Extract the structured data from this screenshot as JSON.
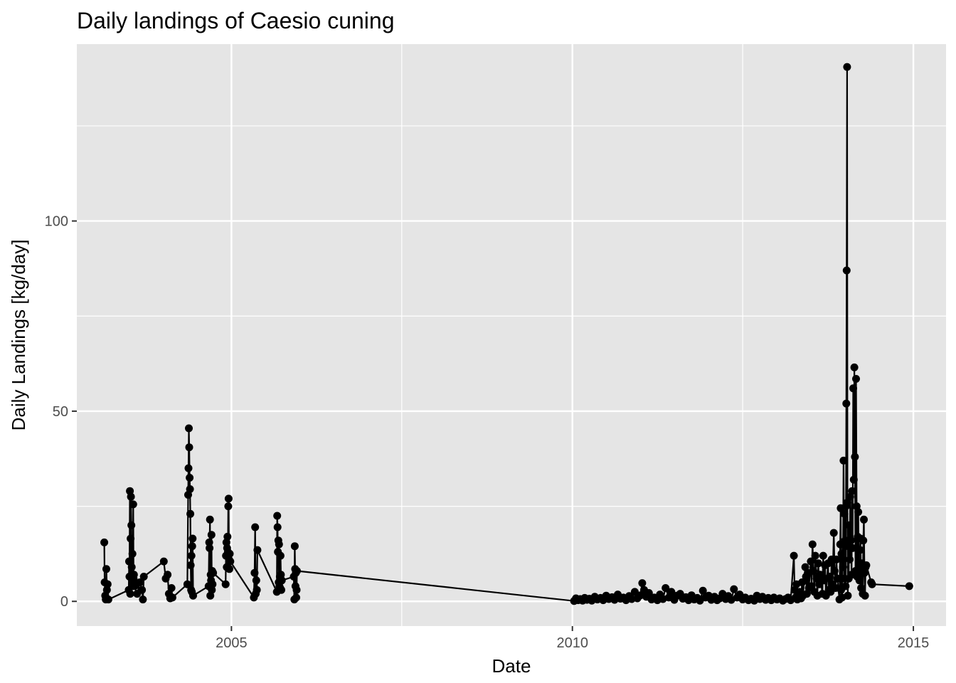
{
  "chart_data": {
    "type": "line",
    "title": "Daily landings of Caesio cuning",
    "xlabel": "Date",
    "ylabel": "Daily Landings [kg/day]",
    "x_axis_type": "date",
    "xlim": [
      "2002-09-26",
      "2015-06-25"
    ],
    "ylim": [
      -6.5,
      146.5
    ],
    "x_ticks": [
      {
        "date": "2005-01-01",
        "label": "2005"
      },
      {
        "date": "2010-01-01",
        "label": "2010"
      },
      {
        "date": "2015-01-01",
        "label": "2015"
      }
    ],
    "x_minor_ticks": [
      "2007-07-02",
      "2012-07-01"
    ],
    "y_ticks": [
      0,
      50,
      100
    ],
    "y_minor_ticks": [
      25,
      75,
      125
    ],
    "grid": true,
    "background": "#e5e5e5",
    "grid_color": "#ffffff",
    "series_color": "#000000",
    "marker": "circle",
    "series": [
      {
        "points": [
          [
            "2003-02-20",
            15.5
          ],
          [
            "2003-02-22",
            5.0
          ],
          [
            "2003-02-25",
            1.5
          ],
          [
            "2003-02-28",
            0.5
          ],
          [
            "2003-03-03",
            8.5
          ],
          [
            "2003-03-06",
            3.0
          ],
          [
            "2003-03-10",
            4.5
          ],
          [
            "2003-03-14",
            0.5
          ],
          [
            "2003-07-01",
            3.0
          ],
          [
            "2003-07-03",
            10.5
          ],
          [
            "2003-07-05",
            6.5
          ],
          [
            "2003-07-07",
            29.0
          ],
          [
            "2003-07-09",
            2.0
          ],
          [
            "2003-07-11",
            16.5
          ],
          [
            "2003-07-13",
            27.5
          ],
          [
            "2003-07-15",
            20.0
          ],
          [
            "2003-07-17",
            9.0
          ],
          [
            "2003-07-19",
            4.0
          ],
          [
            "2003-07-21",
            12.5
          ],
          [
            "2003-07-23",
            5.0
          ],
          [
            "2003-07-25",
            25.5
          ],
          [
            "2003-07-27",
            6.0
          ],
          [
            "2003-07-29",
            7.0
          ],
          [
            "2003-08-01",
            4.0
          ],
          [
            "2003-08-15",
            2.0
          ],
          [
            "2003-08-30",
            5.0
          ],
          [
            "2003-09-10",
            3.0
          ],
          [
            "2003-09-15",
            0.5
          ],
          [
            "2003-09-20",
            6.5
          ],
          [
            "2004-01-05",
            10.5
          ],
          [
            "2004-01-15",
            6.0
          ],
          [
            "2004-01-25",
            7.0
          ],
          [
            "2004-02-01",
            2.0
          ],
          [
            "2004-02-08",
            0.8
          ],
          [
            "2004-02-15",
            3.5
          ],
          [
            "2004-02-20",
            1.0
          ],
          [
            "2004-05-10",
            4.5
          ],
          [
            "2004-05-14",
            28.0
          ],
          [
            "2004-05-16",
            35.0
          ],
          [
            "2004-05-18",
            45.5
          ],
          [
            "2004-05-20",
            40.5
          ],
          [
            "2004-05-22",
            32.5
          ],
          [
            "2004-05-24",
            29.5
          ],
          [
            "2004-05-26",
            23.0
          ],
          [
            "2004-05-28",
            9.5
          ],
          [
            "2004-05-30",
            3.0
          ],
          [
            "2004-06-01",
            12.0
          ],
          [
            "2004-06-03",
            2.5
          ],
          [
            "2004-06-05",
            14.5
          ],
          [
            "2004-06-07",
            16.5
          ],
          [
            "2004-06-10",
            1.5
          ],
          [
            "2004-09-01",
            4.0
          ],
          [
            "2004-09-04",
            15.5
          ],
          [
            "2004-09-06",
            14.0
          ],
          [
            "2004-09-08",
            21.5
          ],
          [
            "2004-09-10",
            1.5
          ],
          [
            "2004-09-12",
            7.0
          ],
          [
            "2004-09-14",
            5.5
          ],
          [
            "2004-09-16",
            17.5
          ],
          [
            "2004-09-18",
            3.0
          ],
          [
            "2004-09-20",
            8.0
          ],
          [
            "2004-09-22",
            4.5
          ],
          [
            "2004-09-25",
            7.5
          ],
          [
            "2004-12-01",
            4.5
          ],
          [
            "2004-12-03",
            12.0
          ],
          [
            "2004-12-05",
            15.5
          ],
          [
            "2004-12-07",
            9.0
          ],
          [
            "2004-12-09",
            14.0
          ],
          [
            "2004-12-11",
            17.0
          ],
          [
            "2004-12-13",
            13.0
          ],
          [
            "2004-12-15",
            25.0
          ],
          [
            "2004-12-17",
            27.0
          ],
          [
            "2004-12-19",
            11.0
          ],
          [
            "2004-12-21",
            8.5
          ],
          [
            "2004-12-23",
            12.5
          ],
          [
            "2004-12-26",
            10.5
          ],
          [
            "2005-05-01",
            1.0
          ],
          [
            "2005-05-05",
            7.5
          ],
          [
            "2005-05-08",
            19.5
          ],
          [
            "2005-05-11",
            2.0
          ],
          [
            "2005-05-14",
            5.5
          ],
          [
            "2005-05-17",
            3.0
          ],
          [
            "2005-05-20",
            13.5
          ],
          [
            "2005-09-01",
            2.5
          ],
          [
            "2005-09-03",
            22.5
          ],
          [
            "2005-09-05",
            19.5
          ],
          [
            "2005-09-07",
            13.0
          ],
          [
            "2005-09-09",
            16.0
          ],
          [
            "2005-09-11",
            5.0
          ],
          [
            "2005-09-13",
            15.0
          ],
          [
            "2005-09-15",
            4.0
          ],
          [
            "2005-09-17",
            6.5
          ],
          [
            "2005-09-19",
            3.5
          ],
          [
            "2005-09-21",
            12.0
          ],
          [
            "2005-09-23",
            7.0
          ],
          [
            "2005-09-25",
            3.0
          ],
          [
            "2005-09-28",
            5.5
          ],
          [
            "2005-12-01",
            6.5
          ],
          [
            "2005-12-04",
            0.5
          ],
          [
            "2005-12-06",
            14.5
          ],
          [
            "2005-12-08",
            8.5
          ],
          [
            "2005-12-10",
            4.0
          ],
          [
            "2005-12-12",
            7.5
          ],
          [
            "2005-12-14",
            1.0
          ],
          [
            "2005-12-16",
            3.0
          ],
          [
            "2005-12-18",
            8.0
          ],
          [
            "2010-01-10",
            0.1
          ],
          [
            "2010-01-20",
            0.8
          ],
          [
            "2010-02-01",
            0.3
          ],
          [
            "2010-02-12",
            0.6
          ],
          [
            "2010-02-25",
            0.2
          ],
          [
            "2010-03-08",
            0.9
          ],
          [
            "2010-03-20",
            0.4
          ],
          [
            "2010-04-02",
            0.7
          ],
          [
            "2010-04-15",
            0.2
          ],
          [
            "2010-05-01",
            1.2
          ],
          [
            "2010-05-15",
            0.5
          ],
          [
            "2010-06-01",
            0.9
          ],
          [
            "2010-06-15",
            0.3
          ],
          [
            "2010-07-01",
            1.5
          ],
          [
            "2010-07-15",
            0.6
          ],
          [
            "2010-08-01",
            1.1
          ],
          [
            "2010-08-15",
            0.4
          ],
          [
            "2010-09-01",
            1.8
          ],
          [
            "2010-09-15",
            0.7
          ],
          [
            "2010-10-01",
            1.0
          ],
          [
            "2010-10-15",
            0.3
          ],
          [
            "2010-11-01",
            1.4
          ],
          [
            "2010-11-15",
            0.6
          ],
          [
            "2010-12-01",
            2.5
          ],
          [
            "2010-12-15",
            0.8
          ],
          [
            "2011-01-01",
            1.6
          ],
          [
            "2011-01-10",
            4.8
          ],
          [
            "2011-01-20",
            3.0
          ],
          [
            "2011-02-01",
            1.2
          ],
          [
            "2011-02-15",
            2.2
          ],
          [
            "2011-03-01",
            0.5
          ],
          [
            "2011-03-15",
            1.0
          ],
          [
            "2011-04-01",
            0.3
          ],
          [
            "2011-04-15",
            1.8
          ],
          [
            "2011-05-01",
            0.6
          ],
          [
            "2011-05-15",
            3.5
          ],
          [
            "2011-06-01",
            1.0
          ],
          [
            "2011-06-15",
            2.5
          ],
          [
            "2011-07-01",
            0.4
          ],
          [
            "2011-07-15",
            1.5
          ],
          [
            "2011-08-01",
            2.0
          ],
          [
            "2011-08-15",
            0.7
          ],
          [
            "2011-09-01",
            1.1
          ],
          [
            "2011-09-15",
            0.3
          ],
          [
            "2011-10-01",
            1.6
          ],
          [
            "2011-10-15",
            0.5
          ],
          [
            "2011-11-01",
            0.9
          ],
          [
            "2011-11-15",
            0.2
          ],
          [
            "2011-12-01",
            2.8
          ],
          [
            "2011-12-15",
            1.0
          ],
          [
            "2012-01-01",
            1.5
          ],
          [
            "2012-01-15",
            0.4
          ],
          [
            "2012-02-01",
            1.2
          ],
          [
            "2012-02-15",
            0.3
          ],
          [
            "2012-03-01",
            0.8
          ],
          [
            "2012-03-15",
            2.0
          ],
          [
            "2012-04-01",
            0.6
          ],
          [
            "2012-04-15",
            1.4
          ],
          [
            "2012-05-01",
            0.4
          ],
          [
            "2012-05-15",
            3.2
          ],
          [
            "2012-06-01",
            1.0
          ],
          [
            "2012-06-15",
            1.8
          ],
          [
            "2012-07-01",
            0.5
          ],
          [
            "2012-07-15",
            1.0
          ],
          [
            "2012-08-01",
            0.3
          ],
          [
            "2012-08-15",
            0.7
          ],
          [
            "2012-09-01",
            0.2
          ],
          [
            "2012-09-15",
            1.5
          ],
          [
            "2012-10-01",
            0.6
          ],
          [
            "2012-10-15",
            1.2
          ],
          [
            "2012-11-01",
            0.4
          ],
          [
            "2012-11-15",
            0.9
          ],
          [
            "2012-12-01",
            0.3
          ],
          [
            "2012-12-15",
            1.0
          ],
          [
            "2013-01-01",
            0.5
          ],
          [
            "2013-01-15",
            0.8
          ],
          [
            "2013-02-01",
            0.2
          ],
          [
            "2013-02-15",
            0.6
          ],
          [
            "2013-03-01",
            1.0
          ],
          [
            "2013-03-15",
            0.3
          ],
          [
            "2013-04-01",
            12.0
          ],
          [
            "2013-04-05",
            3.0
          ],
          [
            "2013-04-10",
            1.0
          ],
          [
            "2013-04-15",
            4.5
          ],
          [
            "2013-04-20",
            0.5
          ],
          [
            "2013-05-01",
            2.5
          ],
          [
            "2013-05-10",
            0.8
          ],
          [
            "2013-05-15",
            5.0
          ],
          [
            "2013-05-20",
            1.5
          ],
          [
            "2013-06-01",
            9.0
          ],
          [
            "2013-06-05",
            6.5
          ],
          [
            "2013-06-10",
            2.0
          ],
          [
            "2013-06-15",
            7.5
          ],
          [
            "2013-06-20",
            3.5
          ],
          [
            "2013-07-01",
            10.5
          ],
          [
            "2013-07-05",
            4.0
          ],
          [
            "2013-07-10",
            15.0
          ],
          [
            "2013-07-15",
            8.0
          ],
          [
            "2013-07-20",
            2.5
          ],
          [
            "2013-07-25",
            12.0
          ],
          [
            "2013-08-01",
            6.0
          ],
          [
            "2013-08-05",
            1.5
          ],
          [
            "2013-08-10",
            10.0
          ],
          [
            "2013-08-15",
            4.5
          ],
          [
            "2013-08-20",
            7.0
          ],
          [
            "2013-09-01",
            2.0
          ],
          [
            "2013-09-05",
            12.0
          ],
          [
            "2013-09-10",
            5.5
          ],
          [
            "2013-09-15",
            9.5
          ],
          [
            "2013-09-20",
            1.5
          ],
          [
            "2013-10-01",
            10.0
          ],
          [
            "2013-10-05",
            3.0
          ],
          [
            "2013-10-10",
            6.5
          ],
          [
            "2013-10-15",
            2.5
          ],
          [
            "2013-10-20",
            11.0
          ],
          [
            "2013-10-25",
            4.5
          ],
          [
            "2013-11-01",
            18.0
          ],
          [
            "2013-11-05",
            8.0
          ],
          [
            "2013-11-10",
            3.5
          ],
          [
            "2013-11-15",
            11.0
          ],
          [
            "2013-11-20",
            6.0
          ],
          [
            "2013-12-01",
            0.5
          ],
          [
            "2013-12-05",
            15.0
          ],
          [
            "2013-12-08",
            24.5
          ],
          [
            "2013-12-10",
            3.0
          ],
          [
            "2013-12-12",
            12.5
          ],
          [
            "2013-12-15",
            1.0
          ],
          [
            "2013-12-18",
            15.5
          ],
          [
            "2013-12-20",
            9.0
          ],
          [
            "2013-12-23",
            37.0
          ],
          [
            "2013-12-26",
            6.0
          ],
          [
            "2013-12-28",
            23.0
          ],
          [
            "2014-01-01",
            16.0
          ],
          [
            "2014-01-03",
            4.0
          ],
          [
            "2014-01-05",
            25.0
          ],
          [
            "2014-01-07",
            52.0
          ],
          [
            "2014-01-09",
            87.0
          ],
          [
            "2014-01-11",
            140.5
          ],
          [
            "2014-01-13",
            26.0
          ],
          [
            "2014-01-15",
            1.5
          ],
          [
            "2014-01-17",
            14.5
          ],
          [
            "2014-01-20",
            6.0
          ],
          [
            "2014-01-22",
            20.0
          ],
          [
            "2014-01-25",
            11.0
          ],
          [
            "2014-01-28",
            27.5
          ],
          [
            "2014-02-01",
            16.0
          ],
          [
            "2014-02-04",
            7.0
          ],
          [
            "2014-02-07",
            29.0
          ],
          [
            "2014-02-10",
            14.0
          ],
          [
            "2014-02-13",
            56.0
          ],
          [
            "2014-02-16",
            32.0
          ],
          [
            "2014-02-19",
            61.5
          ],
          [
            "2014-02-22",
            38.0
          ],
          [
            "2014-02-25",
            8.0
          ],
          [
            "2014-02-28",
            58.5
          ],
          [
            "2014-03-03",
            25.0
          ],
          [
            "2014-03-06",
            6.5
          ],
          [
            "2014-03-09",
            17.0
          ],
          [
            "2014-03-12",
            23.5
          ],
          [
            "2014-03-15",
            9.0
          ],
          [
            "2014-03-18",
            5.5
          ],
          [
            "2014-03-21",
            13.5
          ],
          [
            "2014-03-24",
            16.5
          ],
          [
            "2014-03-27",
            3.5
          ],
          [
            "2014-03-30",
            10.0
          ],
          [
            "2014-04-02",
            8.0
          ],
          [
            "2014-04-05",
            2.0
          ],
          [
            "2014-04-08",
            16.0
          ],
          [
            "2014-04-11",
            21.5
          ],
          [
            "2014-04-14",
            7.5
          ],
          [
            "2014-04-17",
            1.5
          ],
          [
            "2014-04-20",
            9.0
          ],
          [
            "2014-04-24",
            9.5
          ],
          [
            "2014-05-20",
            5.0
          ],
          [
            "2014-05-25",
            4.5
          ],
          [
            "2014-12-10",
            4.0
          ]
        ]
      }
    ]
  }
}
